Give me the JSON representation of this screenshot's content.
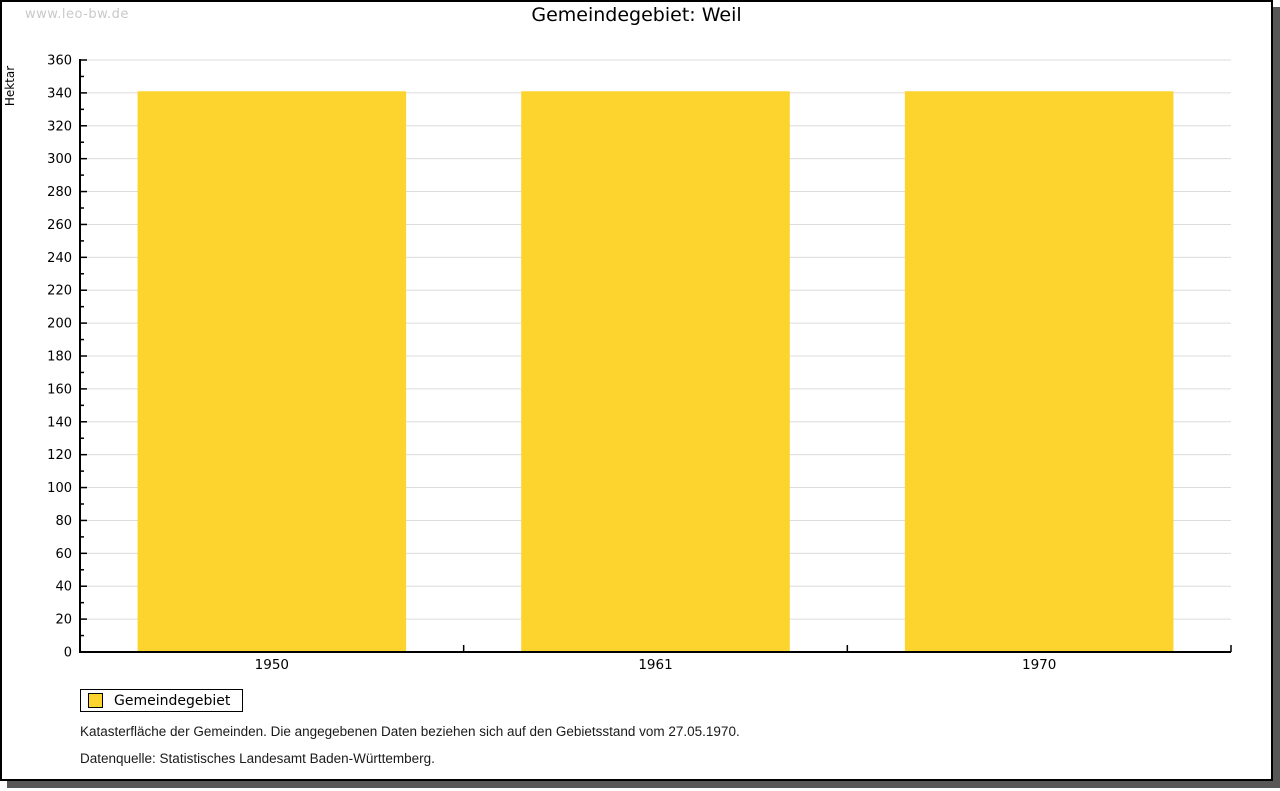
{
  "window": {
    "watermark": "www.leo-bw.de"
  },
  "title": "Gemeindegebiet: Weil",
  "chart_data": {
    "type": "bar",
    "title": "Gemeindegebiet: Weil",
    "categories": [
      "1950",
      "1961",
      "1970"
    ],
    "values": [
      341,
      341,
      341
    ],
    "series_name": "Gemeindegebiet",
    "xlabel": "",
    "ylabel": "Hektar",
    "ylim": [
      0,
      360
    ],
    "ytick_step": 20,
    "yminor_step": 10,
    "grid": true,
    "legend_position": "bottom-left",
    "bar_color": "#FCD42D",
    "gridline_color": "#dcdcdc",
    "axis_color": "#000000"
  },
  "legend": {
    "label": "Gemeindegebiet"
  },
  "footnotes": [
    "Katasterfläche der Gemeinden. Die angegebenen Daten beziehen sich auf den Gebietsstand vom 27.05.1970.",
    "Datenquelle: Statistisches Landesamt Baden-Württemberg."
  ]
}
